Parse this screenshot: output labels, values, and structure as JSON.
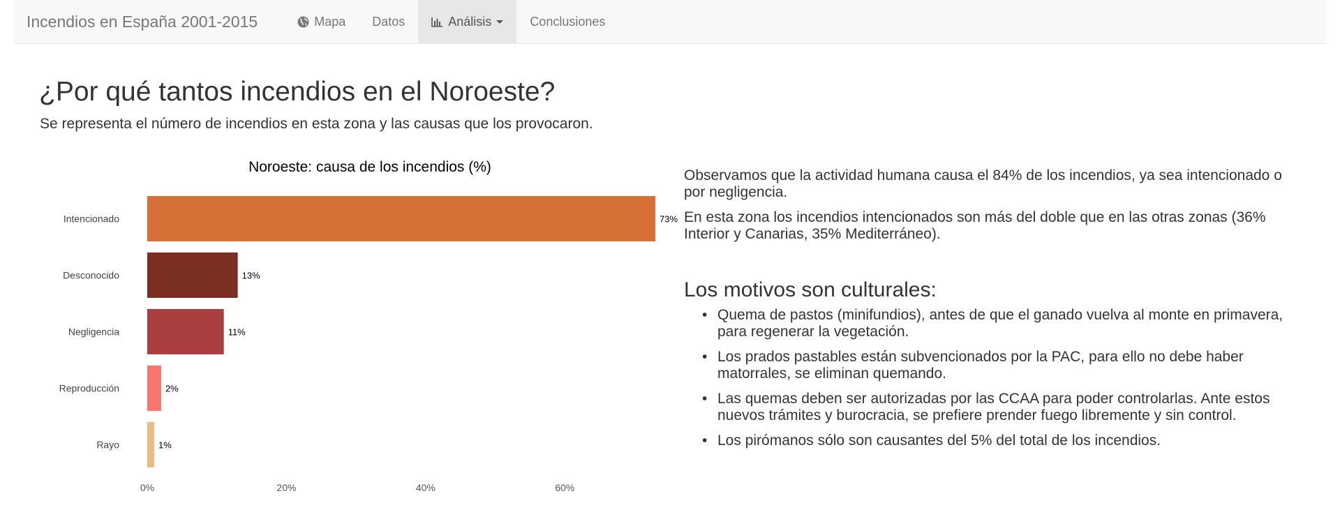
{
  "navbar": {
    "brand": "Incendios en España 2001-2015",
    "items": [
      {
        "label": "Mapa",
        "icon": "globe-icon",
        "active": false
      },
      {
        "label": "Datos",
        "icon": "",
        "active": false
      },
      {
        "label": "Análisis",
        "icon": "bar-chart-icon",
        "active": true,
        "dropdown": true
      },
      {
        "label": "Conclusiones",
        "icon": "",
        "active": false
      }
    ]
  },
  "page": {
    "title": "¿Por qué tantos incendios en el Noroeste?",
    "subtitle": "Se representa el número de incendios en esta zona y las causas que los provocaron."
  },
  "chart_data": {
    "type": "bar",
    "orientation": "horizontal",
    "title": "Noroeste: causa de los incendios (%)",
    "categories": [
      "Intencionado",
      "Desconocido",
      "Negligencia",
      "Reproducción",
      "Rayo"
    ],
    "values": [
      73,
      13,
      11,
      2,
      1
    ],
    "value_labels": [
      "73%",
      "13%",
      "11%",
      "2%",
      "1%"
    ],
    "colors": [
      "#d67036",
      "#7b2f21",
      "#ab3e3f",
      "#f7766b",
      "#eabc81"
    ],
    "xticks": [
      "0%",
      "20%",
      "40%",
      "60%"
    ],
    "xtick_values": [
      0,
      20,
      40,
      60
    ],
    "xlim": [
      0,
      73
    ],
    "xlabel": "",
    "ylabel": "",
    "grid": false
  },
  "analysis": {
    "paragraphs": [
      "Observamos que la actividad humana causa el 84% de los incendios, ya sea intencionado o por negligencia.",
      "En esta zona los incendios intencionados son más del doble que en las otras zonas (36% Interior y Canarias, 35% Mediterráneo)."
    ],
    "motivos_title": "Los motivos son culturales:",
    "motivos": [
      "Quema de pastos (minifundios), antes de que el ganado vuelva al monte en primavera, para regenerar la vegetación.",
      "Los prados pastables están subvencionados por la PAC, para ello no debe haber matorrales, se eliminan quemando.",
      "Las quemas deben ser autorizadas por las CCAA para poder controlarlas. Ante estos nuevos trámites y burocracia, se prefiere prender fuego libremente y sin control.",
      "Los pirómanos sólo son causantes del 5% del total de los incendios."
    ]
  }
}
